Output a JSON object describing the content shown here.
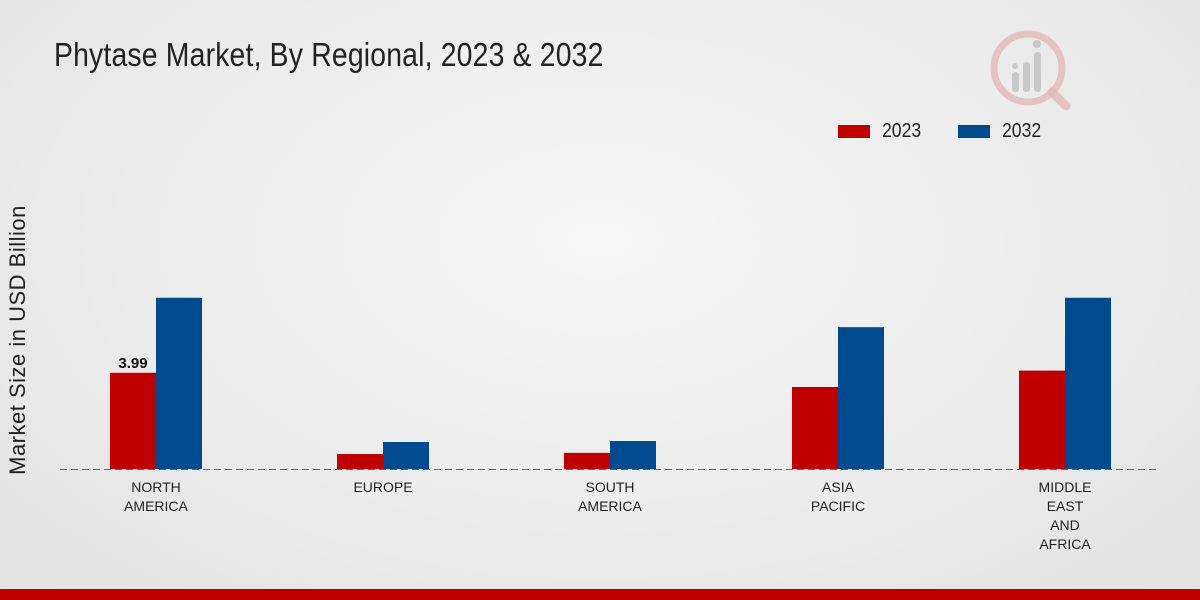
{
  "chart_data": {
    "type": "bar",
    "title": "Phytase Market, By Regional, 2023 & 2032",
    "xlabel": "",
    "ylabel": "Market Size in USD Billion",
    "categories": [
      [
        "NORTH",
        "AMERICA"
      ],
      [
        "EUROPE"
      ],
      [
        "SOUTH",
        "AMERICA"
      ],
      [
        "ASIA",
        "PACIFIC"
      ],
      [
        "MIDDLE",
        "EAST",
        "AND",
        "AFRICA"
      ]
    ],
    "series": [
      {
        "name": "2023",
        "color": "#c00000",
        "values": [
          3.99,
          0.62,
          0.67,
          3.4,
          4.08
        ]
      },
      {
        "name": "2032",
        "color": "#004a8f",
        "values": [
          7.1,
          1.12,
          1.16,
          5.88,
          7.1
        ]
      }
    ],
    "data_labels": [
      {
        "series": 0,
        "index": 0,
        "text": "3.99"
      }
    ],
    "ylim": [
      0,
      17
    ],
    "grid": false,
    "legend_position": "top-right"
  },
  "logo": {
    "icon": "market-research-logo-icon"
  }
}
